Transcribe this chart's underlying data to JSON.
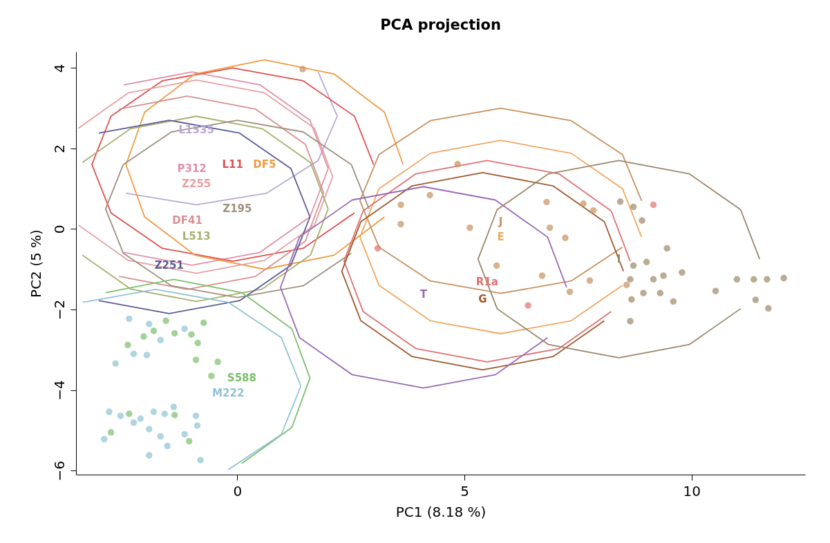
{
  "chart_data": {
    "type": "scatter",
    "title": "PCA projection",
    "xlabel": "PC1 (8.18 %)",
    "ylabel": "PC2 (5 %)",
    "xlim": [
      -3.55,
      12.5
    ],
    "xticks": [
      0,
      5,
      10
    ],
    "ylim": [
      -6.1,
      4.4
    ],
    "yticks": [
      -6,
      -4,
      -2,
      0,
      2,
      4
    ],
    "grid": false,
    "line_style": "solid",
    "series": [
      {
        "type": "line",
        "name": "L1335",
        "color": "#b8a8d8",
        "x": [
          2.2,
          1.78,
          null,
          null,
          null,
          null,
          null,
          null,
          -2.45,
          -0.9,
          0.65,
          1.78,
          2.2
        ],
        "values": [
          2.8,
          3.9,
          null,
          null,
          null,
          null,
          null,
          null,
          0.89,
          0.6,
          0.89,
          1.7,
          2.8
        ]
      },
      {
        "type": "line",
        "name": "P312",
        "color": "#e090a8",
        "x": [
          2.0,
          1.6,
          0.5,
          -1.0,
          -2.5,
          null,
          null,
          null,
          -2.5,
          -1.0,
          0.5,
          1.6,
          2.0
        ],
        "values": [
          1.5,
          2.7,
          3.58,
          3.9,
          3.58,
          null,
          null,
          null,
          -0.58,
          -0.9,
          -0.58,
          0.3,
          1.5
        ]
      },
      {
        "type": "line",
        "name": "L11",
        "color": "#e05050",
        "x": [
          3.0,
          2.58,
          1.45,
          -0.1,
          -1.65,
          -2.78,
          -3.2,
          -2.78,
          -1.65,
          -0.1,
          1.45,
          2.58
        ],
        "values": [
          1.6,
          2.8,
          3.68,
          4.0,
          3.68,
          2.8,
          1.6,
          0.4,
          -0.48,
          -0.8,
          -0.48,
          0.4
        ]
      },
      {
        "type": "line",
        "name": "DF5",
        "color": "#f09a40",
        "x": [
          3.65,
          3.24,
          2.13,
          0.6,
          -0.93,
          -2.04,
          -2.45,
          -2.04,
          -0.93,
          0.6,
          2.13,
          3.24
        ],
        "values": [
          1.6,
          2.9,
          3.85,
          4.2,
          3.85,
          2.9,
          1.6,
          0.3,
          -0.65,
          -1.0,
          -0.65,
          0.3
        ]
      },
      {
        "type": "line",
        "name": "Z255",
        "color": "#e8a0a0",
        "x": [
          2.1,
          1.7,
          0.6,
          -0.9,
          -2.4,
          -3.5,
          null,
          -3.5,
          -2.4,
          -0.9,
          0.6,
          1.7,
          2.1
        ],
        "values": [
          1.3,
          2.5,
          3.38,
          3.7,
          3.38,
          2.5,
          null,
          0.1,
          -0.78,
          -1.1,
          -0.78,
          0.1,
          1.3
        ]
      },
      {
        "type": "line",
        "name": "DF41",
        "color": "#d89090",
        "x": [
          1.9,
          1.5,
          0.4,
          -1.1,
          -2.6,
          null,
          null,
          null,
          -2.6,
          -1.1,
          0.4,
          1.5,
          1.9
        ],
        "values": [
          0.9,
          2.1,
          2.98,
          3.3,
          2.98,
          null,
          null,
          null,
          -1.18,
          -1.5,
          -1.18,
          -0.3,
          0.9
        ]
      },
      {
        "type": "line",
        "name": "L513",
        "color": "#a8b070",
        "x": [
          2.0,
          1.61,
          0.55,
          -0.9,
          -2.35,
          -3.41,
          null,
          -3.41,
          -2.35,
          -0.9,
          0.55,
          1.61,
          2.0
        ],
        "values": [
          0.5,
          1.65,
          2.49,
          2.8,
          2.49,
          1.65,
          null,
          -0.65,
          -1.49,
          -1.8,
          -1.49,
          -0.65,
          0.5
        ]
      },
      {
        "type": "line",
        "name": "Z195",
        "color": "#a09080",
        "x": [
          2.9,
          2.51,
          1.45,
          0,
          -1.45,
          -2.51,
          -2.9,
          -2.51,
          -1.45,
          0,
          1.45,
          2.51
        ],
        "values": [
          0.5,
          1.6,
          2.41,
          2.7,
          2.41,
          1.6,
          0.5,
          -0.6,
          -1.41,
          -1.7,
          -1.41,
          -0.6
        ]
      },
      {
        "type": "line",
        "name": "Z251",
        "color": "#5a5a98",
        "x": [
          1.6,
          1.18,
          0.05,
          -1.5,
          -3.05,
          null,
          null,
          null,
          -3.05,
          -1.5,
          0.05,
          1.18,
          1.6
        ],
        "values": [
          0.3,
          1.5,
          2.38,
          2.7,
          2.38,
          null,
          null,
          null,
          -1.78,
          -2.1,
          -1.78,
          -0.9,
          0.3
        ]
      },
      {
        "type": "line",
        "name": "S588",
        "color": "#7cbf6c",
        "x": [
          1.6,
          1.2,
          0.1,
          -1.4,
          -2.9,
          null,
          null,
          null,
          null,
          null,
          0.1,
          1.2,
          1.6
        ],
        "values": [
          -3.7,
          -2.48,
          -1.58,
          -1.25,
          -1.58,
          null,
          null,
          null,
          null,
          null,
          -5.82,
          -4.93,
          -3.7
        ]
      },
      {
        "type": "line",
        "name": "M222",
        "color": "#8fc3d3",
        "x": [
          1.4,
          0.97,
          -0.2,
          -1.8,
          -3.4,
          null,
          null,
          null,
          null,
          null,
          -0.2,
          0.97,
          1.4
        ],
        "values": [
          -3.9,
          -2.7,
          -1.82,
          -1.5,
          -1.82,
          null,
          null,
          null,
          null,
          null,
          -5.98,
          -5.1,
          -3.9
        ]
      },
      {
        "type": "line",
        "name": "J",
        "color": "#c89060",
        "x": [
          8.9,
          8.48,
          7.35,
          5.8,
          4.25,
          3.12,
          2.7,
          3.12,
          4.25,
          5.8,
          7.35,
          8.48
        ],
        "values": [
          0.7,
          1.85,
          2.69,
          3.0,
          2.69,
          1.85,
          0.7,
          -0.45,
          -1.29,
          -1.6,
          -1.29,
          -0.45
        ]
      },
      {
        "type": "line",
        "name": "E",
        "color": "#f0a860",
        "x": [
          8.9,
          8.48,
          7.35,
          5.8,
          4.25,
          3.12,
          2.7,
          3.12,
          4.25,
          5.8,
          7.35,
          8.48
        ],
        "values": [
          -0.2,
          1.0,
          1.88,
          2.2,
          1.88,
          1.0,
          -0.2,
          -1.4,
          -2.28,
          -2.6,
          -2.28,
          -1.4
        ]
      },
      {
        "type": "line",
        "name": "R1a",
        "color": "#e07070",
        "x": [
          8.65,
          8.23,
          7.08,
          5.5,
          3.93,
          2.77,
          2.35,
          2.77,
          3.93,
          5.5,
          7.08,
          8.23
        ],
        "values": [
          -0.8,
          0.45,
          1.37,
          1.7,
          1.37,
          0.45,
          -0.8,
          -2.05,
          -2.97,
          -3.3,
          -2.97,
          -2.05
        ]
      },
      {
        "type": "line",
        "name": "G",
        "color": "#a05a30",
        "x": [
          8.5,
          8.08,
          6.95,
          5.4,
          3.85,
          2.72,
          2.3,
          2.72,
          3.85,
          5.4,
          6.95,
          8.08
        ],
        "values": [
          -1.05,
          0.18,
          1.07,
          1.4,
          1.07,
          0.18,
          -1.05,
          -2.28,
          -3.17,
          -3.5,
          -3.17,
          -2.28
        ]
      },
      {
        "type": "line",
        "name": "T",
        "color": "#9a6ab4",
        "x": [
          7.25,
          6.83,
          5.68,
          4.1,
          2.53,
          1.37,
          0.95,
          1.37,
          2.53,
          4.1,
          5.68,
          6.83
        ],
        "values": [
          -1.45,
          -0.2,
          0.72,
          1.05,
          0.72,
          -0.2,
          -1.45,
          -2.7,
          -3.62,
          -3.95,
          -3.62,
          -2.7
        ]
      },
      {
        "type": "line",
        "name": "I",
        "color": "#9c8868",
        "x": [
          11.5,
          11.08,
          9.95,
          8.4,
          6.85,
          5.72,
          5.3,
          5.72,
          6.85,
          8.4,
          9.95,
          11.08
        ],
        "values": [
          -0.75,
          0.48,
          1.37,
          1.7,
          1.37,
          0.48,
          -0.75,
          -1.98,
          -2.87,
          -3.2,
          -2.87,
          -1.98
        ]
      },
      {
        "color": "#9c8868",
        "x": [
          8.43,
          8.72,
          8.91,
          9.01,
          8.72,
          8.65,
          8.94,
          9.16,
          9.31,
          9.38,
          9.46,
          9.79,
          9.6,
          8.68,
          10.53,
          11.0,
          11.37,
          11.66,
          12.03,
          11.41,
          11.69,
          8.65
        ],
        "values": [
          0.68,
          0.55,
          0.21,
          -0.82,
          -0.91,
          -1.25,
          -1.59,
          -1.25,
          -1.59,
          -1.16,
          -0.48,
          -1.08,
          -1.8,
          -1.75,
          -1.54,
          -1.25,
          -1.25,
          -1.25,
          -1.22,
          -1.76,
          -1.97,
          -2.29
        ]
      },
      {
        "color": "#c89060",
        "x": [
          3.6,
          4.24,
          3.6,
          4.85,
          6.81,
          6.88,
          7.22,
          7.62,
          7.84,
          6.71,
          7.32,
          7.76,
          8.57,
          5.71,
          5.12,
          1.44
        ],
        "values": [
          0.6,
          0.84,
          0.12,
          1.61,
          0.67,
          0.03,
          -0.22,
          0.63,
          0.46,
          -1.16,
          -1.56,
          -1.28,
          -1.39,
          -0.91,
          0.03,
          3.97
        ]
      },
      {
        "color": "#e07070",
        "x": [
          9.16,
          3.09,
          6.4
        ],
        "values": [
          0.6,
          -0.48,
          -1.9
        ]
      },
      {
        "color": "#8fc3d3",
        "x": [
          -2.38,
          -1.94,
          -1.16,
          -1.69,
          -1.99,
          -2.68,
          -2.28,
          -2.82,
          -2.57,
          -2.28,
          -2.13,
          -1.84,
          -1.6,
          -0.91,
          -0.88,
          -1.94,
          -2.93,
          -1.69,
          -1.54,
          -1.94,
          -0.81,
          -1.16,
          -1.4
        ],
        "values": [
          -2.23,
          -2.36,
          -2.48,
          -2.76,
          -3.13,
          -3.34,
          -3.1,
          -4.54,
          -4.64,
          -4.81,
          -4.71,
          -4.54,
          -4.59,
          -4.64,
          -4.88,
          -4.97,
          -5.22,
          -5.15,
          -5.39,
          -5.62,
          -5.74,
          -5.1,
          -4.42
        ]
      },
      {
        "color": "#7cbf6c",
        "x": [
          -1.57,
          -0.74,
          -1.84,
          -1.38,
          -1.01,
          -2.06,
          -0.87,
          -2.41,
          -0.43,
          -0.91,
          -0.57,
          -1.38,
          -1.06,
          -2.78,
          -2.38
        ],
        "values": [
          -2.28,
          -2.33,
          -2.53,
          -2.59,
          -2.62,
          -2.67,
          -2.83,
          -2.88,
          -3.3,
          -3.25,
          -3.65,
          -4.62,
          -5.27,
          -5.05,
          -4.59
        ]
      }
    ]
  }
}
